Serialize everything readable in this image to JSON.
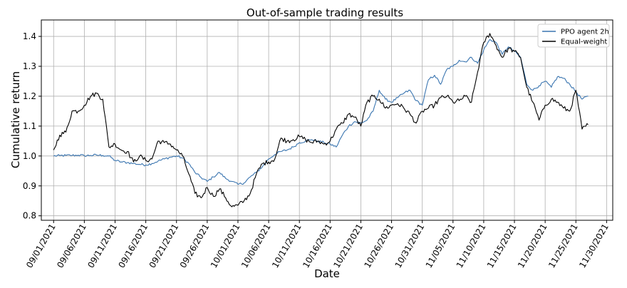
{
  "chart_data": {
    "type": "line",
    "title": "Out-of-sample trading results",
    "xlabel": "Date",
    "ylabel": "Cumulative return",
    "x_range": [
      "2021-08-30",
      "2021-12-01"
    ],
    "ylim": [
      0.785,
      1.455
    ],
    "grid": true,
    "legend_position": "top-right",
    "x_ticks": [
      "09/01/2021",
      "09/06/2021",
      "09/11/2021",
      "09/16/2021",
      "09/21/2021",
      "09/26/2021",
      "10/01/2021",
      "10/06/2021",
      "10/11/2021",
      "10/16/2021",
      "10/21/2021",
      "10/26/2021",
      "10/31/2021",
      "11/05/2021",
      "11/10/2021",
      "11/15/2021",
      "11/20/2021",
      "11/25/2021",
      "11/30/2021"
    ],
    "x_tick_dates": [
      "2021-09-01",
      "2021-09-06",
      "2021-09-11",
      "2021-09-16",
      "2021-09-21",
      "2021-09-26",
      "2021-10-01",
      "2021-10-06",
      "2021-10-11",
      "2021-10-16",
      "2021-10-21",
      "2021-10-26",
      "2021-10-31",
      "2021-11-05",
      "2021-11-10",
      "2021-11-15",
      "2021-11-20",
      "2021-11-25",
      "2021-11-30"
    ],
    "y_ticks": [
      0.8,
      0.9,
      1.0,
      1.1,
      1.2,
      1.3,
      1.4
    ],
    "y_tick_labels": [
      "0.8",
      "0.9",
      "1.0",
      "1.1",
      "1.2",
      "1.3",
      "1.4"
    ],
    "series": [
      {
        "name": "PPO agent 2h",
        "color": "#3a75b0",
        "x": [
          "2021-09-01",
          "2021-09-02",
          "2021-09-03",
          "2021-09-04",
          "2021-09-05",
          "2021-09-06",
          "2021-09-07",
          "2021-09-08",
          "2021-09-09",
          "2021-09-10",
          "2021-09-11",
          "2021-09-12",
          "2021-09-13",
          "2021-09-14",
          "2021-09-15",
          "2021-09-16",
          "2021-09-17",
          "2021-09-18",
          "2021-09-19",
          "2021-09-20",
          "2021-09-21",
          "2021-09-22",
          "2021-09-23",
          "2021-09-24",
          "2021-09-25",
          "2021-09-26",
          "2021-09-27",
          "2021-09-28",
          "2021-09-29",
          "2021-09-30",
          "2021-10-01",
          "2021-10-02",
          "2021-10-03",
          "2021-10-04",
          "2021-10-05",
          "2021-10-06",
          "2021-10-07",
          "2021-10-08",
          "2021-10-09",
          "2021-10-10",
          "2021-10-11",
          "2021-10-12",
          "2021-10-13",
          "2021-10-14",
          "2021-10-15",
          "2021-10-16",
          "2021-10-17",
          "2021-10-18",
          "2021-10-19",
          "2021-10-20",
          "2021-10-21",
          "2021-10-22",
          "2021-10-23",
          "2021-10-24",
          "2021-10-25",
          "2021-10-26",
          "2021-10-27",
          "2021-10-28",
          "2021-10-29",
          "2021-10-30",
          "2021-10-31",
          "2021-11-01",
          "2021-11-02",
          "2021-11-03",
          "2021-11-04",
          "2021-11-05",
          "2021-11-06",
          "2021-11-07",
          "2021-11-08",
          "2021-11-09",
          "2021-11-10",
          "2021-11-11",
          "2021-11-12",
          "2021-11-13",
          "2021-11-14",
          "2021-11-15",
          "2021-11-16",
          "2021-11-17",
          "2021-11-18",
          "2021-11-19",
          "2021-11-20",
          "2021-11-21",
          "2021-11-22",
          "2021-11-23",
          "2021-11-24",
          "2021-11-25",
          "2021-11-26",
          "2021-11-27"
        ],
        "values": [
          1.0,
          1.001,
          1.002,
          1.002,
          1.003,
          1.001,
          1.002,
          1.003,
          1.002,
          1.0,
          0.985,
          0.98,
          0.978,
          0.975,
          0.972,
          0.97,
          0.975,
          0.983,
          0.99,
          0.996,
          1.0,
          0.993,
          0.975,
          0.945,
          0.928,
          0.915,
          0.93,
          0.945,
          0.925,
          0.915,
          0.905,
          0.91,
          0.93,
          0.945,
          0.965,
          0.99,
          1.005,
          1.015,
          1.02,
          1.03,
          1.045,
          1.05,
          1.055,
          1.05,
          1.045,
          1.04,
          1.03,
          1.07,
          1.1,
          1.115,
          1.11,
          1.12,
          1.15,
          1.22,
          1.19,
          1.18,
          1.195,
          1.21,
          1.22,
          1.185,
          1.17,
          1.255,
          1.27,
          1.24,
          1.29,
          1.3,
          1.32,
          1.315,
          1.33,
          1.31,
          1.355,
          1.39,
          1.38,
          1.34,
          1.365,
          1.35,
          1.33,
          1.24,
          1.22,
          1.235,
          1.25,
          1.23,
          1.265,
          1.26,
          1.24,
          1.215,
          1.19,
          1.2
        ]
      },
      {
        "name": "Equal-weight",
        "color": "#000000",
        "x": [
          "2021-09-01",
          "2021-09-02",
          "2021-09-03",
          "2021-09-04",
          "2021-09-05",
          "2021-09-06",
          "2021-09-07",
          "2021-09-08",
          "2021-09-09",
          "2021-09-10",
          "2021-09-11",
          "2021-09-12",
          "2021-09-13",
          "2021-09-14",
          "2021-09-15",
          "2021-09-16",
          "2021-09-17",
          "2021-09-18",
          "2021-09-19",
          "2021-09-20",
          "2021-09-21",
          "2021-09-22",
          "2021-09-23",
          "2021-09-24",
          "2021-09-25",
          "2021-09-26",
          "2021-09-27",
          "2021-09-28",
          "2021-09-29",
          "2021-09-30",
          "2021-10-01",
          "2021-10-02",
          "2021-10-03",
          "2021-10-04",
          "2021-10-05",
          "2021-10-06",
          "2021-10-07",
          "2021-10-08",
          "2021-10-09",
          "2021-10-10",
          "2021-10-11",
          "2021-10-12",
          "2021-10-13",
          "2021-10-14",
          "2021-10-15",
          "2021-10-16",
          "2021-10-17",
          "2021-10-18",
          "2021-10-19",
          "2021-10-20",
          "2021-10-21",
          "2021-10-22",
          "2021-10-23",
          "2021-10-24",
          "2021-10-25",
          "2021-10-26",
          "2021-10-27",
          "2021-10-28",
          "2021-10-29",
          "2021-10-30",
          "2021-10-31",
          "2021-11-01",
          "2021-11-02",
          "2021-11-03",
          "2021-11-04",
          "2021-11-05",
          "2021-11-06",
          "2021-11-07",
          "2021-11-08",
          "2021-11-09",
          "2021-11-10",
          "2021-11-11",
          "2021-11-12",
          "2021-11-13",
          "2021-11-14",
          "2021-11-15",
          "2021-11-16",
          "2021-11-17",
          "2021-11-18",
          "2021-11-19",
          "2021-11-20",
          "2021-11-21",
          "2021-11-22",
          "2021-11-23",
          "2021-11-24",
          "2021-11-25",
          "2021-11-26",
          "2021-11-27"
        ],
        "values": [
          1.02,
          1.07,
          1.08,
          1.15,
          1.15,
          1.17,
          1.2,
          1.21,
          1.19,
          1.03,
          1.04,
          1.02,
          1.015,
          0.98,
          1.0,
          0.985,
          0.99,
          1.05,
          1.045,
          1.04,
          1.02,
          1.0,
          0.94,
          0.875,
          0.86,
          0.895,
          0.865,
          0.89,
          0.86,
          0.83,
          0.835,
          0.85,
          0.875,
          0.94,
          0.975,
          0.98,
          0.99,
          1.06,
          1.05,
          1.055,
          1.065,
          1.055,
          1.045,
          1.05,
          1.04,
          1.05,
          1.09,
          1.11,
          1.14,
          1.13,
          1.1,
          1.18,
          1.2,
          1.19,
          1.16,
          1.17,
          1.175,
          1.16,
          1.14,
          1.11,
          1.15,
          1.16,
          1.17,
          1.195,
          1.2,
          1.18,
          1.185,
          1.2,
          1.18,
          1.28,
          1.38,
          1.41,
          1.37,
          1.33,
          1.36,
          1.35,
          1.33,
          1.23,
          1.18,
          1.12,
          1.17,
          1.19,
          1.18,
          1.16,
          1.15,
          1.22,
          1.09,
          1.105
        ]
      }
    ]
  }
}
